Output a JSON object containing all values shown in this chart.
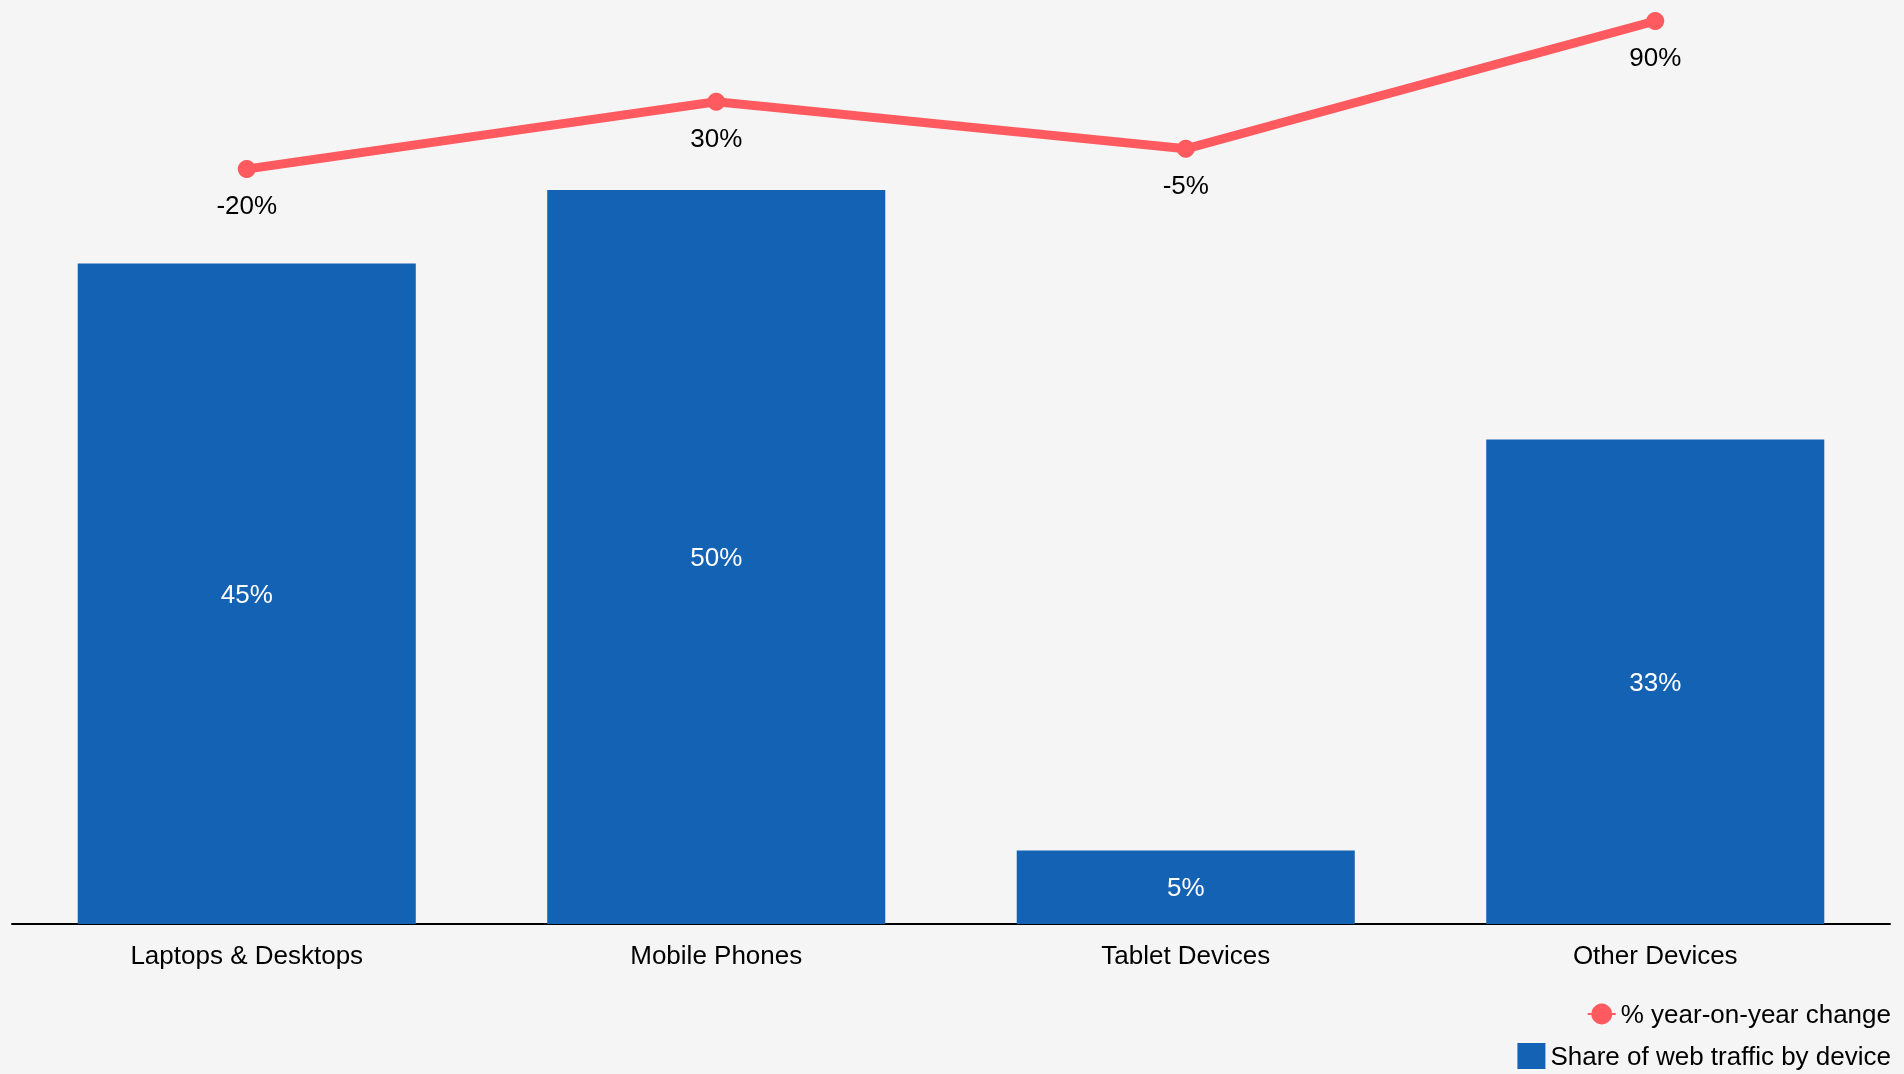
{
  "chart_data": [
    {
      "type": "bar",
      "categories": [
        "Laptops & Desktops",
        "Mobile Phones",
        "Tablet Devices",
        "Other Devices"
      ],
      "series": [
        {
          "name": "Share of web traffic by device",
          "color": "#1462b3",
          "values": [
            45,
            50,
            5,
            33
          ],
          "value_labels": [
            "45%",
            "50%",
            "5%",
            "33%"
          ]
        }
      ],
      "tick_labels": "x",
      "legend": "bottom right"
    },
    {
      "type": "line",
      "categories": [
        null,
        null,
        null,
        null
      ],
      "series": [
        {
          "name": "% year-on-year change",
          "color": "#ff5a5f",
          "values": [
            -20,
            30,
            -5,
            90
          ],
          "value_labels": [
            "-20%",
            "30%",
            "-5%",
            "90%"
          ]
        }
      ],
      "tick_labels": false,
      "marker": "circle",
      "legend": "bottom right"
    }
  ]
}
